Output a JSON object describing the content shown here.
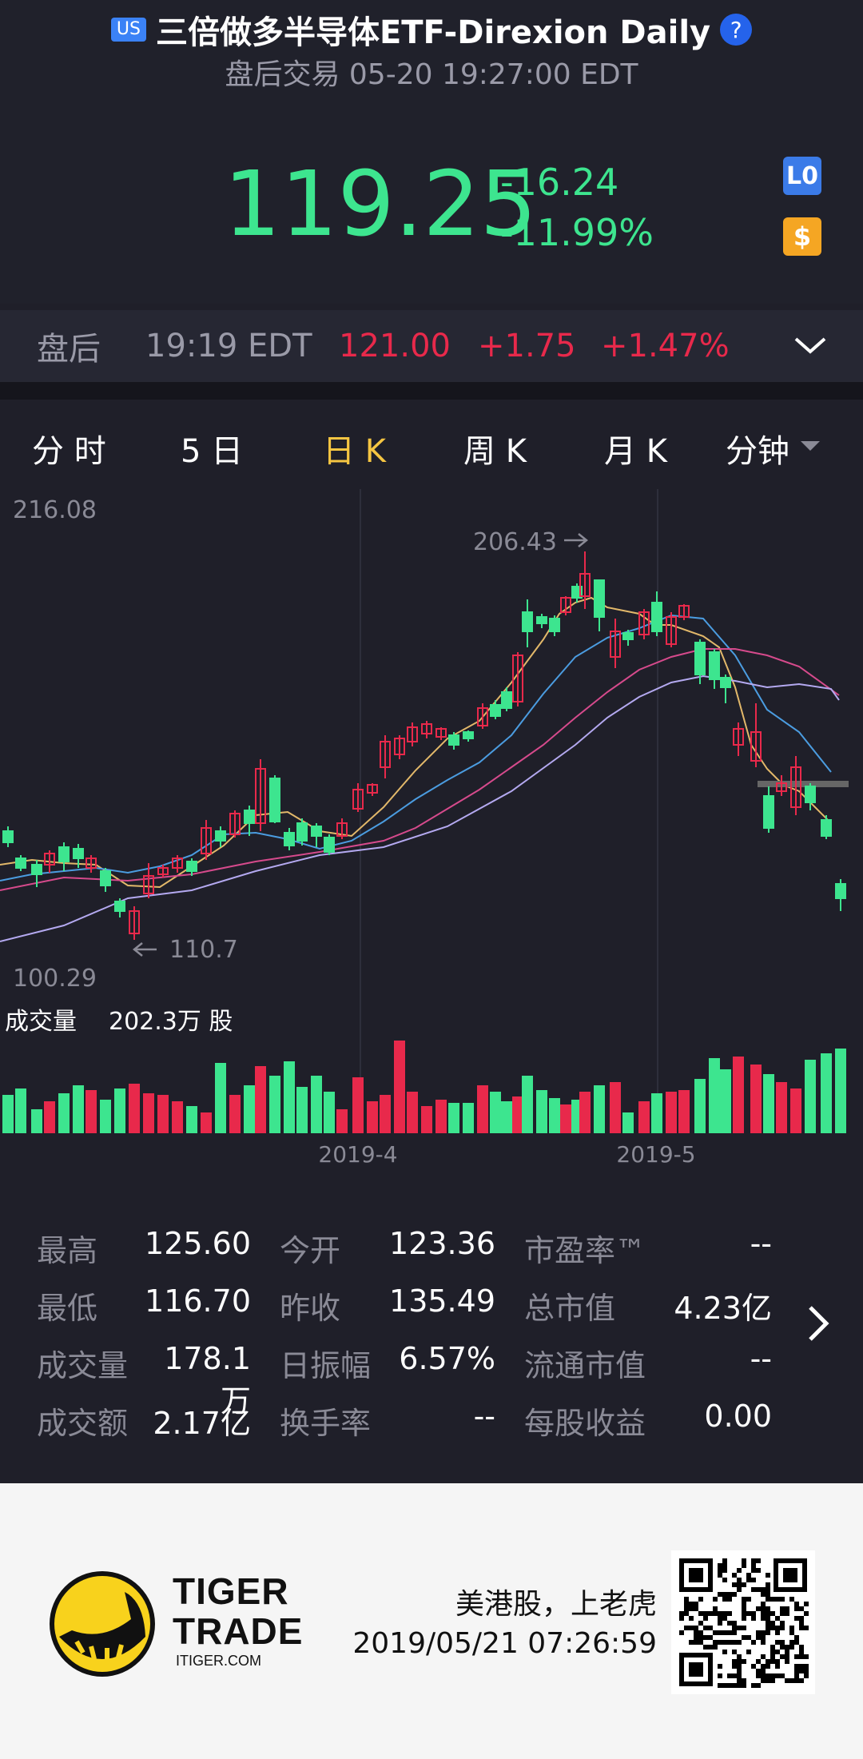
{
  "header": {
    "market_badge": "US",
    "title": "三倍做多半导体ETF-Direxion Daily",
    "help_icon": "?",
    "session": "盘后交易 05-20 19:27:00 EDT",
    "price": "119.25",
    "change": "-16.24",
    "change_pct": "-11.99%",
    "level_badge": "L0",
    "currency_badge": "$"
  },
  "after_hours": {
    "label": "盘后",
    "time": "19:19 EDT",
    "price": "121.00",
    "change": "+1.75",
    "change_pct": "+1.47%"
  },
  "tabs": [
    {
      "label": "分 时"
    },
    {
      "label": "5 日"
    },
    {
      "label": "日 K"
    },
    {
      "label": "周 K"
    },
    {
      "label": "月 K"
    },
    {
      "label": "分钟"
    }
  ],
  "active_tab": 2,
  "chart": {
    "y_max_label": "216.08",
    "y_min_label": "100.29",
    "high_marker": "206.43",
    "low_marker": "110.7",
    "volume_label": "成交量",
    "volume_value": "202.3万 股",
    "x_labels": [
      "2019-4",
      "2019-5"
    ],
    "up_color": "#3de58f",
    "down_color": "#e8294b"
  },
  "stats": [
    {
      "label": "最高",
      "value": "125.60"
    },
    {
      "label": "今开",
      "value": "123.36"
    },
    {
      "label": "市盈率™",
      "value": "--"
    },
    {
      "label": "最低",
      "value": "116.70"
    },
    {
      "label": "昨收",
      "value": "135.49"
    },
    {
      "label": "总市值",
      "value": "4.23亿"
    },
    {
      "label": "成交量",
      "value": "178.1万"
    },
    {
      "label": "日振幅",
      "value": "6.57%"
    },
    {
      "label": "流通市值",
      "value": "--"
    },
    {
      "label": "成交额",
      "value": "2.17亿"
    },
    {
      "label": "换手率",
      "value": "--"
    },
    {
      "label": "每股收益",
      "value": "0.00"
    }
  ],
  "footer": {
    "brand_line1": "TIGER",
    "brand_line2": "TRADE",
    "brand_url": "ITIGER.COM",
    "slogan": "美港股，上老虎",
    "datetime": "2019/05/21 07:26:59"
  }
}
